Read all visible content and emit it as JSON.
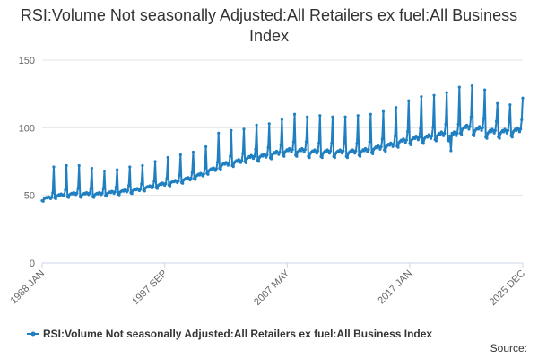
{
  "chart_data": {
    "type": "line",
    "title": "RSI:Volume Not seasonally Adjusted:All Retailers ex fuel:All Business Index",
    "xlabel": "",
    "ylabel": "",
    "ylim": [
      0,
      150
    ],
    "y_ticks": [
      0,
      50,
      100,
      150
    ],
    "x_tick_labels": [
      "1988 JAN",
      "1997 SEP",
      "2007 MAY",
      "2017 JAN",
      "2025 DEC"
    ],
    "x_range": [
      "1988 JAN",
      "2025 DEC"
    ],
    "grid": "horizontal",
    "legend_position": "bottom",
    "series": [
      {
        "name": "RSI:Volume Not seasonally Adjusted:All Retailers ex fuel:All Business Index",
        "color": "#1f7fc1",
        "frequency": "monthly",
        "start": "1988 JAN",
        "end": "2025 DEC",
        "baseline_by_year": [
          [
            "1988",
            48
          ],
          [
            "1989",
            50
          ],
          [
            "1990",
            51
          ],
          [
            "1991",
            51
          ],
          [
            "1992",
            51
          ],
          [
            "1993",
            52
          ],
          [
            "1994",
            53
          ],
          [
            "1995",
            54
          ],
          [
            "1996",
            56
          ],
          [
            "1997",
            58
          ],
          [
            "1998",
            60
          ],
          [
            "1999",
            62
          ],
          [
            "2000",
            65
          ],
          [
            "2001",
            69
          ],
          [
            "2002",
            73
          ],
          [
            "2003",
            75
          ],
          [
            "2004",
            78
          ],
          [
            "2005",
            79
          ],
          [
            "2006",
            81
          ],
          [
            "2007",
            83
          ],
          [
            "2008",
            83
          ],
          [
            "2009",
            82
          ],
          [
            "2010",
            82
          ],
          [
            "2011",
            82
          ],
          [
            "2012",
            82
          ],
          [
            "2013",
            83
          ],
          [
            "2014",
            85
          ],
          [
            "2015",
            87
          ],
          [
            "2016",
            90
          ],
          [
            "2017",
            92
          ],
          [
            "2018",
            93
          ],
          [
            "2019",
            95
          ],
          [
            "2020",
            95
          ],
          [
            "2021",
            100
          ],
          [
            "2022",
            99
          ],
          [
            "2023",
            97
          ],
          [
            "2024",
            97
          ],
          [
            "2025",
            98
          ]
        ],
        "december_peaks": [
          [
            "1988",
            71
          ],
          [
            "1989",
            72
          ],
          [
            "1990",
            72
          ],
          [
            "1991",
            70
          ],
          [
            "1992",
            68
          ],
          [
            "1993",
            69
          ],
          [
            "1994",
            71
          ],
          [
            "1995",
            72
          ],
          [
            "1996",
            75
          ],
          [
            "1997",
            78
          ],
          [
            "1998",
            80
          ],
          [
            "1999",
            82
          ],
          [
            "2000",
            86
          ],
          [
            "2001",
            96
          ],
          [
            "2002",
            98
          ],
          [
            "2003",
            99
          ],
          [
            "2004",
            102
          ],
          [
            "2005",
            103
          ],
          [
            "2006",
            106
          ],
          [
            "2007",
            110
          ],
          [
            "2008",
            108
          ],
          [
            "2009",
            109
          ],
          [
            "2010",
            108
          ],
          [
            "2011",
            108
          ],
          [
            "2012",
            109
          ],
          [
            "2013",
            110
          ],
          [
            "2014",
            112
          ],
          [
            "2015",
            115
          ],
          [
            "2016",
            120
          ],
          [
            "2017",
            123
          ],
          [
            "2018",
            124
          ],
          [
            "2019",
            126
          ],
          [
            "2020",
            130
          ],
          [
            "2021",
            131
          ],
          [
            "2022",
            128
          ],
          [
            "2023",
            118
          ],
          [
            "2024",
            117
          ],
          [
            "2025",
            122
          ]
        ],
        "notable_points": [
          [
            "2020 APR",
            83
          ]
        ]
      }
    ]
  },
  "legend": {
    "label": "RSI:Volume Not seasonally Adjusted:All Retailers ex fuel:All Business Index"
  },
  "footer": {
    "source_label": "Source:"
  }
}
